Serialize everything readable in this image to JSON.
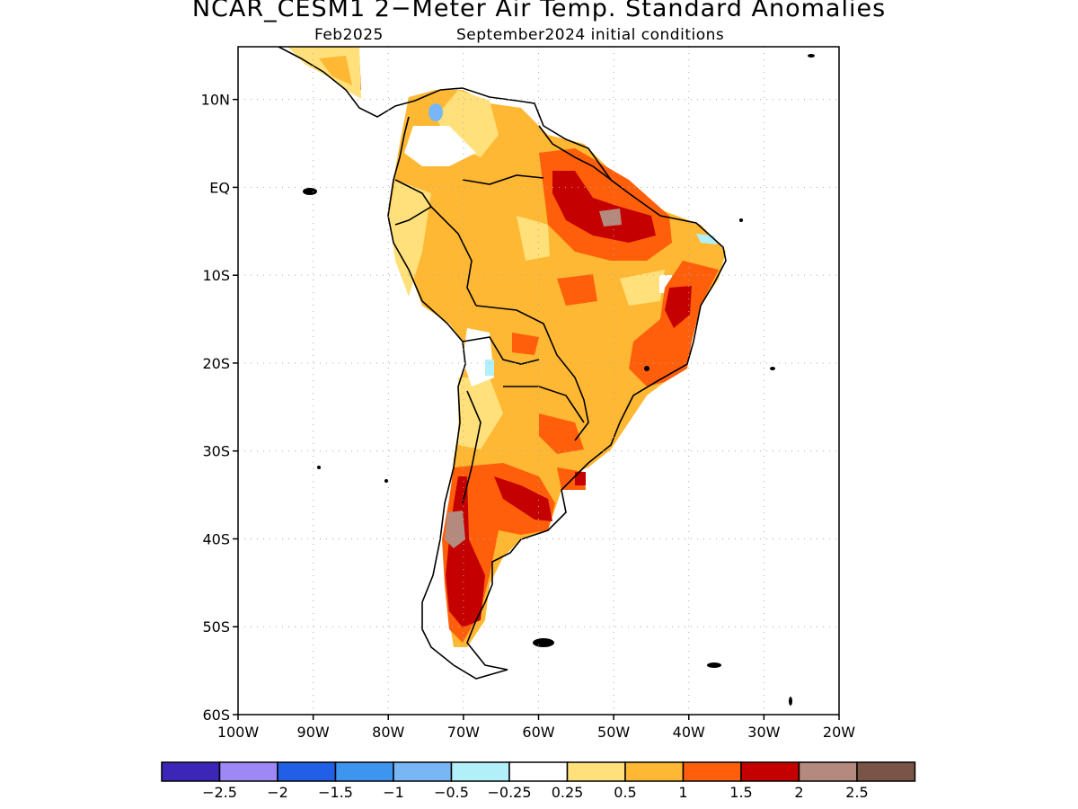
{
  "header": {
    "title": "NCAR_CESM1 2−Meter Air Temp. Standard Anomalies",
    "target_month": "Feb2025",
    "init_conditions": "September2024 initial conditions"
  },
  "map": {
    "lat_labels": [
      "10N",
      "EQ",
      "10S",
      "20S",
      "30S",
      "40S",
      "50S",
      "60S"
    ],
    "lon_labels": [
      "100W",
      "90W",
      "80W",
      "70W",
      "60W",
      "50W",
      "40W",
      "30W",
      "20W"
    ],
    "lat_values": [
      10,
      0,
      -10,
      -20,
      -30,
      -40,
      -50,
      -60
    ],
    "lon_values": [
      -100,
      -90,
      -80,
      -70,
      -60,
      -50,
      -40,
      -30,
      -20
    ],
    "extent": {
      "lon": [
        -100,
        -20
      ],
      "lat": [
        -60,
        16
      ]
    },
    "gridlines": "dotted"
  },
  "colorbar": {
    "colors": [
      "#3b26b8",
      "#9d88f5",
      "#2160e6",
      "#3e95f0",
      "#78b6f6",
      "#b1eff9",
      "#ffffff",
      "#ffe07a",
      "#ffb833",
      "#ff5f0a",
      "#c50000",
      "#b38a7d",
      "#7a5446"
    ],
    "labels": [
      "−2.5",
      "−2",
      "−1.5",
      "−1",
      "−0.5",
      "−0.25",
      "0.25",
      "0.5",
      "1",
      "1.5",
      "2",
      "2.5"
    ]
  }
}
